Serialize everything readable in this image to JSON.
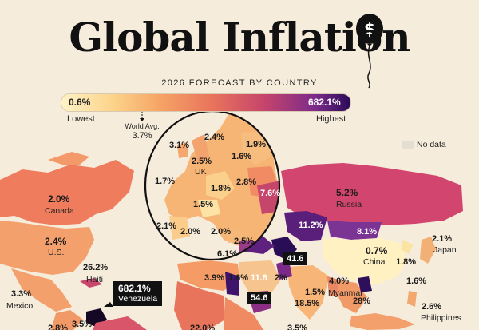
{
  "title": "Global Inflation",
  "subtitle": "2026 FORECAST BY COUNTRY",
  "scale": {
    "min": "0.6%",
    "max": "682.1%",
    "low_label": "Lowest",
    "high_label": "Highest"
  },
  "world_avg": {
    "label": "World Avg.",
    "value": "3.7%"
  },
  "no_data_label": "No data",
  "colors": {
    "background": "#f6ecdc",
    "low": "#fff3c8",
    "mid": "#e9745c",
    "high": "#2a0b57",
    "no_data": "#e4ddd2",
    "balloon": "#111111"
  },
  "icons": {
    "balloon": "dollar-balloon-icon"
  },
  "countries": [
    {
      "name": "Canada",
      "value": "2.0%"
    },
    {
      "name": "U.S.",
      "value": "2.4%"
    },
    {
      "name": "Mexico",
      "value": "3.3%"
    },
    {
      "name": "Haiti",
      "value": "26.2%"
    },
    {
      "name": "Venezuela",
      "value": "682.1%"
    },
    {
      "name": "Russia",
      "value": "5.2%"
    },
    {
      "name": "China",
      "value": "0.7%"
    },
    {
      "name": "Japan",
      "value": "2.1%"
    },
    {
      "name": "Myanmar",
      "value": "4.0%"
    },
    {
      "name": "Philippines",
      "value": "2.6%"
    },
    {
      "name": "UK",
      "value": "2.5%"
    }
  ],
  "europe_values": [
    "2.4%",
    "3.1%",
    "1.9%",
    "1.6%",
    "1.7%",
    "2.8%",
    "7.6%",
    "1.8%",
    "1.5%",
    "2.1%",
    "2.0%",
    "2.0%",
    "2.5%",
    "6.1%"
  ],
  "other_values": [
    "11.2%",
    "8.1%",
    "1.8%",
    "1.6%",
    "41.6",
    "54.6",
    "3.9%",
    "1.6%",
    "11.8",
    "2%",
    "1.5%",
    "18.5%",
    "28%",
    "3.5%",
    "2.8%",
    "22.0%",
    "3.5%"
  ]
}
